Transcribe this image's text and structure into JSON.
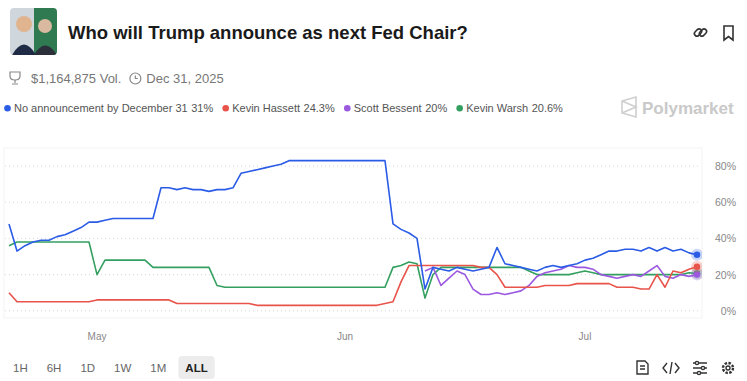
{
  "header": {
    "volume": "$1,164,875 Vol.",
    "end_date": "Dec 31, 2025",
    "brand": "Polymarket"
  },
  "chart_data": {
    "type": "line",
    "title": "Who will Trump announce as next Fed Chair?",
    "categories": [
      null,
      null,
      null,
      null,
      null,
      null,
      null,
      null,
      null,
      null,
      null,
      "May",
      null,
      null,
      null,
      null,
      null,
      null,
      null,
      null,
      null,
      null,
      null,
      null,
      null,
      null,
      null,
      null,
      null,
      null,
      null,
      null,
      null,
      null,
      null,
      null,
      null,
      null,
      null,
      null,
      null,
      null,
      "Jun",
      null,
      null,
      null,
      null,
      null,
      null,
      null,
      null,
      null,
      null,
      null,
      null,
      null,
      null,
      null,
      null,
      null,
      null,
      null,
      null,
      null,
      null,
      null,
      null,
      null,
      null,
      null,
      null,
      null,
      "Jul",
      null,
      null,
      null,
      null,
      null,
      null,
      null,
      null,
      null,
      null,
      null,
      null,
      null,
      null
    ],
    "series": [
      {
        "name": "No announcement by December 31",
        "current_label": "31%",
        "color": "#2b5ce6",
        "values": [
          48,
          33,
          36,
          38,
          39,
          39,
          41,
          42,
          44,
          46,
          49,
          49,
          50,
          51,
          51,
          51,
          51,
          51,
          51,
          68,
          68,
          67,
          68,
          67,
          67,
          66,
          67,
          67,
          68,
          76,
          77,
          78,
          79,
          80,
          81,
          83,
          83,
          83,
          83,
          83,
          83,
          83,
          83,
          83,
          83,
          83,
          83,
          83,
          48,
          45,
          43,
          40,
          12,
          24,
          23,
          22,
          24,
          23,
          22,
          23,
          24,
          35,
          26,
          25,
          24,
          23,
          22,
          24,
          25,
          24,
          25,
          26,
          28,
          29,
          31,
          33,
          33,
          34,
          34,
          33,
          35,
          33,
          35,
          33,
          34,
          32,
          31
        ]
      },
      {
        "name": "Kevin Hassett",
        "current_label": "24.3%",
        "color": "#e8534a",
        "values": [
          10,
          5,
          5,
          5,
          5,
          5,
          5,
          5,
          5,
          5,
          5,
          6,
          6,
          6,
          6,
          6,
          6,
          6,
          6,
          6,
          6,
          4,
          4,
          4,
          4,
          4,
          4,
          4,
          4,
          4,
          4,
          3,
          3,
          3,
          3,
          3,
          3,
          3,
          3,
          3,
          3,
          3,
          3,
          3,
          3,
          3,
          3,
          4,
          5,
          16,
          25,
          25,
          25,
          25,
          25,
          25,
          25,
          25,
          25,
          24,
          24,
          20,
          13,
          13,
          13,
          13,
          13,
          14,
          14,
          14,
          14,
          15,
          15,
          15,
          15,
          15,
          13,
          13,
          13,
          12,
          12,
          20,
          13,
          22,
          21,
          23,
          24.3
        ]
      },
      {
        "name": "Scott Bessent",
        "current_label": "20%",
        "color": "#9b59e0",
        "values": [
          null,
          null,
          null,
          null,
          null,
          null,
          null,
          null,
          null,
          null,
          null,
          null,
          null,
          null,
          null,
          null,
          null,
          null,
          null,
          null,
          null,
          null,
          null,
          null,
          null,
          null,
          null,
          null,
          null,
          null,
          null,
          null,
          null,
          null,
          null,
          null,
          null,
          null,
          null,
          null,
          null,
          null,
          null,
          null,
          null,
          null,
          null,
          null,
          null,
          null,
          null,
          null,
          22,
          24,
          14,
          18,
          22,
          20,
          12,
          9,
          9,
          10,
          9,
          10,
          11,
          14,
          19,
          21,
          22,
          23,
          25,
          24,
          24,
          23,
          20,
          19,
          18,
          19,
          20,
          19,
          22,
          25,
          19,
          18,
          20,
          19,
          20
        ]
      },
      {
        "name": "Kevin Warsh",
        "current_label": "20.6%",
        "color": "#34a060",
        "values": [
          36,
          38,
          38,
          38,
          38,
          38,
          38,
          38,
          38,
          38,
          38,
          20,
          28,
          28,
          28,
          28,
          28,
          28,
          24,
          24,
          24,
          24,
          24,
          24,
          24,
          24,
          14,
          13,
          13,
          13,
          13,
          13,
          13,
          13,
          13,
          13,
          13,
          13,
          13,
          13,
          13,
          13,
          13,
          13,
          13,
          13,
          13,
          13,
          24,
          25,
          27,
          26,
          7,
          20,
          24,
          24,
          24,
          24,
          24,
          24,
          24,
          24,
          24,
          24,
          24,
          22,
          20,
          20,
          20,
          20,
          20,
          21,
          22,
          21,
          20,
          20,
          20,
          20,
          20,
          20,
          20,
          20,
          20,
          20,
          20,
          21,
          20.6
        ]
      }
    ],
    "ylim": [
      -4,
      90
    ],
    "yticks": [
      {
        "value": 0,
        "label": "0%"
      },
      {
        "value": 20,
        "label": "20%"
      },
      {
        "value": 40,
        "label": "40%"
      },
      {
        "value": 60,
        "label": "60%"
      },
      {
        "value": 80,
        "label": "80%"
      }
    ],
    "grid": true,
    "legend": "top"
  },
  "controls": {
    "ranges": [
      "1H",
      "6H",
      "1D",
      "1W",
      "1M",
      "ALL"
    ],
    "selected": "ALL"
  }
}
